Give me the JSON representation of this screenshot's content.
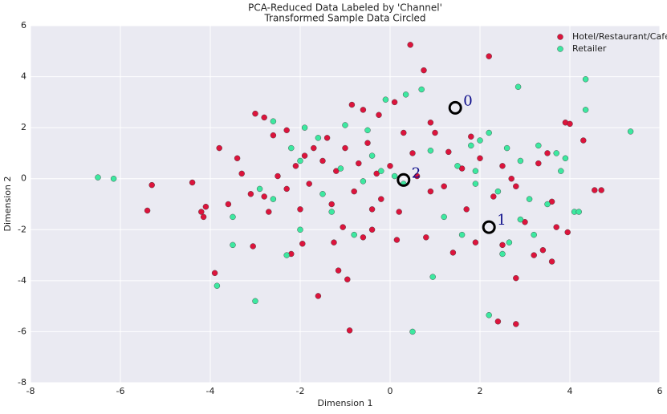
{
  "chart_data": {
    "type": "scatter",
    "title": "PCA-Reduced Data Labeled by 'Channel'",
    "subtitle": "Transformed Sample Data Circled",
    "x_label": "Dimension 1",
    "y_label": "Dimension 2",
    "xlim": [
      -8,
      6
    ],
    "ylim": [
      -8,
      6
    ],
    "xticks": [
      -8,
      -6,
      -4,
      -2,
      0,
      2,
      4,
      6
    ],
    "yticks": [
      -8,
      -6,
      -4,
      -2,
      0,
      2,
      4,
      6
    ],
    "grid": true,
    "legend": "upper right",
    "series": [
      {
        "name": "Hotel/Restaurant/Cafe",
        "color": "#dc143c",
        "x": [
          0.45,
          0.75,
          2.2,
          -5.3,
          -5.4,
          -4.4,
          -4.1,
          -4.15,
          -3.9,
          -3.8,
          -3.3,
          -3.1,
          -3,
          -2.8,
          -2.7,
          -3.05,
          -2.2,
          -1.95,
          -1.6,
          -1.15,
          -0.95,
          -0.9,
          -0.85,
          -0.6,
          -0.25,
          0.1,
          0.9,
          1,
          1.3,
          1.8,
          2,
          2.5,
          2.8,
          3,
          3.2,
          3.6,
          3.4,
          3.6,
          3.9,
          4,
          4.3,
          4.55,
          3.95,
          2.4,
          2.8,
          2.8,
          2.5,
          1.9,
          1.4,
          0.8,
          0.15,
          -0.4,
          -0.6,
          -1.05,
          -1.25,
          -2,
          -2.3,
          -2.1,
          -1.7,
          -1.4,
          -1,
          -0.5,
          -0.3,
          0,
          0.6,
          0.9,
          1.2,
          1.6,
          -1.5,
          -1.8,
          -2.5,
          -2.8,
          -3.6,
          -4.2,
          -1.2,
          -0.8,
          -0.2,
          0.3,
          0.5,
          -2.3,
          -2.6,
          -3.4,
          1.7,
          2.3,
          2.7,
          3.3,
          3.5,
          -1.3,
          -0.7,
          0.2,
          -1.9,
          -0.4,
          3.7,
          4.7
        ],
        "y": [
          5.25,
          4.25,
          4.8,
          -0.25,
          -1.25,
          -0.15,
          -1.1,
          -1.5,
          -3.7,
          1.2,
          0.2,
          -0.6,
          2.55,
          2.4,
          -1.3,
          -2.65,
          -2.95,
          -2.55,
          -4.6,
          -3.6,
          -3.95,
          -5.95,
          2.9,
          2.7,
          2.5,
          3,
          2.2,
          1.8,
          1.05,
          1.65,
          0.8,
          0.5,
          -0.3,
          -1.7,
          -3,
          -3.25,
          -2.8,
          -0.9,
          2.2,
          2.15,
          1.5,
          -0.45,
          -2.1,
          -5.6,
          -5.7,
          -3.9,
          -2.6,
          -2.5,
          -2.9,
          -2.3,
          -2.4,
          -2,
          -2.3,
          -1.9,
          -2.5,
          -1.2,
          -0.4,
          0.5,
          1.2,
          1.6,
          1.2,
          1.4,
          0.2,
          0.5,
          0.1,
          -0.5,
          -0.3,
          0.4,
          0.7,
          -0.2,
          0.1,
          -0.7,
          -1,
          -1.3,
          0.3,
          -0.5,
          -0.8,
          1.8,
          1,
          1.9,
          1.7,
          0.8,
          -1.2,
          -0.7,
          0,
          0.6,
          1,
          -1,
          0.6,
          -1.3,
          0.9,
          -1.2,
          -1.9,
          -0.45
        ]
      },
      {
        "name": "Retailer",
        "color": "#3de8a0",
        "x": [
          -6.5,
          -6.15,
          -3.85,
          -3,
          -2.3,
          -3.5,
          -3.5,
          -2.6,
          -2,
          -0.8,
          0.5,
          0.95,
          0.35,
          0.7,
          2.85,
          4.35,
          4.35,
          5.35,
          4.1,
          4.2,
          2.2,
          2.5,
          2.65,
          3.2,
          3.5,
          3.3,
          3.7,
          3.9,
          2.9,
          2.6,
          2.2,
          1.8,
          2,
          1.6,
          1.2,
          0.3,
          0.1,
          -0.2,
          -0.5,
          -1,
          -1.6,
          -1.9,
          -2.2,
          -2,
          -1.5,
          -1.3,
          -2.6,
          -2.9,
          -0.4,
          0.9,
          1.5,
          2.4,
          3.1,
          1.9,
          -0.1,
          -0.6,
          -1.1,
          3.8,
          2.9,
          1.9
        ],
        "y": [
          0.05,
          0,
          -4.2,
          -4.8,
          -3,
          -2.6,
          -1.5,
          2.25,
          -2,
          -2.2,
          -6,
          -3.85,
          3.3,
          3.5,
          3.6,
          3.9,
          2.7,
          1.85,
          -1.3,
          -1.3,
          -5.35,
          -2.95,
          -2.5,
          -2.2,
          -1,
          1.3,
          1,
          0.8,
          0.7,
          1.2,
          1.8,
          1.3,
          1.5,
          -2.2,
          -1.5,
          -0.2,
          0.1,
          0.3,
          1.9,
          2.1,
          1.6,
          2,
          1.2,
          0.7,
          -0.6,
          -1.3,
          -0.8,
          -0.4,
          0.9,
          1.1,
          0.5,
          -0.5,
          -0.8,
          -0.2,
          3.1,
          -0.1,
          0.4,
          0.3,
          -1.6,
          0.3
        ]
      }
    ],
    "samples": {
      "x": [
        1.45,
        2.2,
        0.3
      ],
      "y": [
        2.78,
        -1.9,
        -0.05
      ],
      "labels": [
        "0",
        "1",
        "2"
      ]
    }
  }
}
